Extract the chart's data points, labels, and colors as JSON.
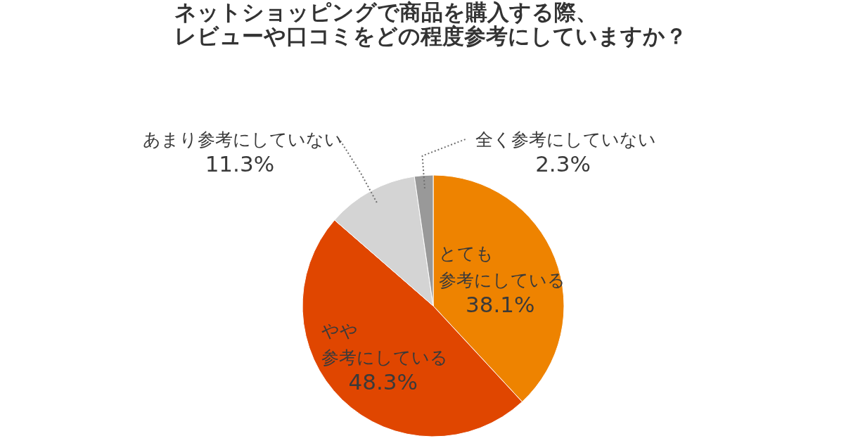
{
  "chart_data": {
    "type": "pie",
    "title": "ネットショッピングで商品を購入する際、レビューや口コミをどの程度参考にしていますか？",
    "categories": [
      "とても参考にしている",
      "やや参考にしている",
      "あまり参考にしていない",
      "全く参考にしていない"
    ],
    "values": [
      38.1,
      48.3,
      11.3,
      2.3
    ],
    "colors": [
      "#ee8300",
      "#e04600",
      "#d4d4d4",
      "#999999"
    ],
    "value_labels": [
      "38.1%",
      "48.3%",
      "11.3%",
      "2.3%"
    ]
  }
}
